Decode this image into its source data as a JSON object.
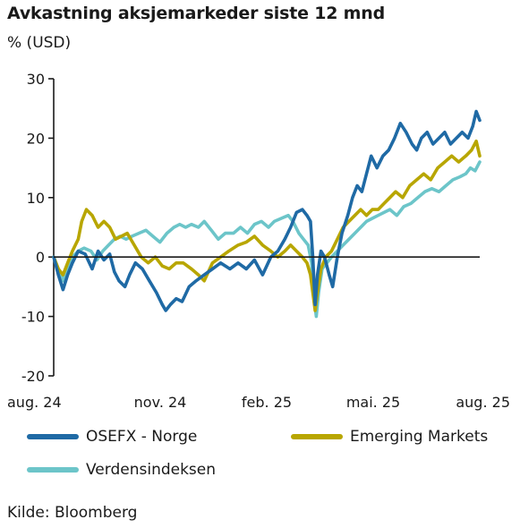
{
  "chart_data": {
    "type": "line",
    "title": "Avkastning aksjemarkeder siste 12 mnd",
    "ylabel": "% (USD)",
    "xlabel": "",
    "ylim": [
      -20,
      30
    ],
    "yticks": [
      30,
      20,
      10,
      0,
      -10,
      -20
    ],
    "xticks": [
      "aug. 24",
      "nov. 24",
      "feb. 25",
      "mai. 25",
      "aug. 25"
    ],
    "x_range": [
      "2024-08-01",
      "2025-08-01"
    ],
    "grid": false,
    "legend_position": "bottom",
    "source": "Kilde: Bloomberg",
    "series": [
      {
        "name": "OSEFX - Norge",
        "color": "#1f6aa5",
        "points": [
          [
            "2024-08-01",
            0
          ],
          [
            "2024-08-05",
            -3
          ],
          [
            "2024-08-09",
            -5.5
          ],
          [
            "2024-08-13",
            -3
          ],
          [
            "2024-08-17",
            -1
          ],
          [
            "2024-08-22",
            1
          ],
          [
            "2024-08-28",
            0.5
          ],
          [
            "2024-09-03",
            -2
          ],
          [
            "2024-09-08",
            1
          ],
          [
            "2024-09-13",
            -0.5
          ],
          [
            "2024-09-18",
            0.5
          ],
          [
            "2024-09-22",
            -2.5
          ],
          [
            "2024-09-26",
            -4
          ],
          [
            "2024-10-01",
            -5
          ],
          [
            "2024-10-05",
            -3
          ],
          [
            "2024-10-10",
            -1
          ],
          [
            "2024-10-16",
            -2
          ],
          [
            "2024-10-22",
            -4
          ],
          [
            "2024-10-28",
            -6
          ],
          [
            "2024-11-02",
            -8
          ],
          [
            "2024-11-05",
            -9
          ],
          [
            "2024-11-09",
            -8
          ],
          [
            "2024-11-14",
            -7
          ],
          [
            "2024-11-19",
            -7.5
          ],
          [
            "2024-11-25",
            -5
          ],
          [
            "2024-12-01",
            -4
          ],
          [
            "2024-12-08",
            -3
          ],
          [
            "2024-12-15",
            -2
          ],
          [
            "2024-12-22",
            -1
          ],
          [
            "2024-12-30",
            -2
          ],
          [
            "2025-01-06",
            -1
          ],
          [
            "2025-01-13",
            -2
          ],
          [
            "2025-01-20",
            -0.5
          ],
          [
            "2025-01-27",
            -3
          ],
          [
            "2025-02-03",
            0
          ],
          [
            "2025-02-09",
            1
          ],
          [
            "2025-02-15",
            3
          ],
          [
            "2025-02-20",
            5
          ],
          [
            "2025-02-25",
            7.5
          ],
          [
            "2025-03-02",
            8
          ],
          [
            "2025-03-06",
            7
          ],
          [
            "2025-03-09",
            6
          ],
          [
            "2025-03-11",
            0
          ],
          [
            "2025-03-13",
            -8
          ],
          [
            "2025-03-15",
            -3
          ],
          [
            "2025-03-18",
            1
          ],
          [
            "2025-03-21",
            0
          ],
          [
            "2025-03-25",
            -3
          ],
          [
            "2025-03-28",
            -5
          ],
          [
            "2025-04-01",
            0
          ],
          [
            "2025-04-05",
            4
          ],
          [
            "2025-04-10",
            7
          ],
          [
            "2025-04-14",
            10
          ],
          [
            "2025-04-18",
            12
          ],
          [
            "2025-04-22",
            11
          ],
          [
            "2025-04-26",
            14
          ],
          [
            "2025-04-30",
            17
          ],
          [
            "2025-05-05",
            15
          ],
          [
            "2025-05-10",
            17
          ],
          [
            "2025-05-15",
            18
          ],
          [
            "2025-05-20",
            20
          ],
          [
            "2025-05-25",
            22.5
          ],
          [
            "2025-05-30",
            21
          ],
          [
            "2025-06-04",
            19
          ],
          [
            "2025-06-08",
            18
          ],
          [
            "2025-06-12",
            20
          ],
          [
            "2025-06-17",
            21
          ],
          [
            "2025-06-22",
            19
          ],
          [
            "2025-06-27",
            20
          ],
          [
            "2025-07-02",
            21
          ],
          [
            "2025-07-07",
            19
          ],
          [
            "2025-07-12",
            20
          ],
          [
            "2025-07-17",
            21
          ],
          [
            "2025-07-22",
            20
          ],
          [
            "2025-07-26",
            22
          ],
          [
            "2025-07-29",
            24.5
          ],
          [
            "2025-08-01",
            23
          ]
        ]
      },
      {
        "name": "Emerging Markets",
        "color": "#b8a600",
        "points": [
          [
            "2024-08-01",
            0
          ],
          [
            "2024-08-05",
            -2
          ],
          [
            "2024-08-09",
            -3
          ],
          [
            "2024-08-13",
            -1
          ],
          [
            "2024-08-17",
            1
          ],
          [
            "2024-08-22",
            3
          ],
          [
            "2024-08-25",
            6
          ],
          [
            "2024-08-29",
            8
          ],
          [
            "2024-09-03",
            7
          ],
          [
            "2024-09-08",
            5
          ],
          [
            "2024-09-13",
            6
          ],
          [
            "2024-09-18",
            5
          ],
          [
            "2024-09-23",
            3
          ],
          [
            "2024-09-28",
            3.5
          ],
          [
            "2024-10-03",
            4
          ],
          [
            "2024-10-09",
            2
          ],
          [
            "2024-10-15",
            0
          ],
          [
            "2024-10-21",
            -1
          ],
          [
            "2024-10-27",
            0
          ],
          [
            "2024-11-02",
            -1.5
          ],
          [
            "2024-11-08",
            -2
          ],
          [
            "2024-11-14",
            -1
          ],
          [
            "2024-11-20",
            -1
          ],
          [
            "2024-11-27",
            -2
          ],
          [
            "2024-12-03",
            -3
          ],
          [
            "2024-12-08",
            -4
          ],
          [
            "2024-12-15",
            -1
          ],
          [
            "2024-12-22",
            0
          ],
          [
            "2024-12-29",
            1
          ],
          [
            "2025-01-06",
            2
          ],
          [
            "2025-01-13",
            2.5
          ],
          [
            "2025-01-20",
            3.5
          ],
          [
            "2025-01-27",
            2
          ],
          [
            "2025-02-03",
            1
          ],
          [
            "2025-02-09",
            0
          ],
          [
            "2025-02-15",
            1
          ],
          [
            "2025-02-20",
            2
          ],
          [
            "2025-02-25",
            1
          ],
          [
            "2025-03-02",
            0
          ],
          [
            "2025-03-06",
            -1
          ],
          [
            "2025-03-09",
            -3
          ],
          [
            "2025-03-11",
            -6
          ],
          [
            "2025-03-13",
            -9
          ],
          [
            "2025-03-15",
            -6
          ],
          [
            "2025-03-18",
            -2
          ],
          [
            "2025-03-22",
            0
          ],
          [
            "2025-03-27",
            1
          ],
          [
            "2025-04-01",
            3
          ],
          [
            "2025-04-06",
            5
          ],
          [
            "2025-04-11",
            6
          ],
          [
            "2025-04-16",
            7
          ],
          [
            "2025-04-21",
            8
          ],
          [
            "2025-04-26",
            7
          ],
          [
            "2025-05-01",
            8
          ],
          [
            "2025-05-06",
            8
          ],
          [
            "2025-05-11",
            9
          ],
          [
            "2025-05-16",
            10
          ],
          [
            "2025-05-21",
            11
          ],
          [
            "2025-05-27",
            10
          ],
          [
            "2025-06-02",
            12
          ],
          [
            "2025-06-08",
            13
          ],
          [
            "2025-06-14",
            14
          ],
          [
            "2025-06-20",
            13
          ],
          [
            "2025-06-26",
            15
          ],
          [
            "2025-07-02",
            16
          ],
          [
            "2025-07-08",
            17
          ],
          [
            "2025-07-14",
            16
          ],
          [
            "2025-07-20",
            17
          ],
          [
            "2025-07-25",
            18
          ],
          [
            "2025-07-29",
            19.5
          ],
          [
            "2025-08-01",
            17
          ]
        ]
      },
      {
        "name": "Verdensindeksen",
        "color": "#6cc5c9",
        "points": [
          [
            "2024-08-01",
            0
          ],
          [
            "2024-08-05",
            -2
          ],
          [
            "2024-08-09",
            -4
          ],
          [
            "2024-08-13",
            -2
          ],
          [
            "2024-08-17",
            0
          ],
          [
            "2024-08-22",
            1
          ],
          [
            "2024-08-27",
            1.5
          ],
          [
            "2024-09-02",
            1
          ],
          [
            "2024-09-07",
            -0.5
          ],
          [
            "2024-09-12",
            1
          ],
          [
            "2024-09-17",
            2
          ],
          [
            "2024-09-22",
            3
          ],
          [
            "2024-09-27",
            3.5
          ],
          [
            "2024-10-02",
            3
          ],
          [
            "2024-10-07",
            3.5
          ],
          [
            "2024-10-13",
            4
          ],
          [
            "2024-10-19",
            4.5
          ],
          [
            "2024-10-25",
            3.5
          ],
          [
            "2024-10-31",
            2.5
          ],
          [
            "2024-11-06",
            4
          ],
          [
            "2024-11-12",
            5
          ],
          [
            "2024-11-17",
            5.5
          ],
          [
            "2024-11-22",
            5
          ],
          [
            "2024-11-27",
            5.5
          ],
          [
            "2024-12-03",
            5
          ],
          [
            "2024-12-08",
            6
          ],
          [
            "2024-12-14",
            4.5
          ],
          [
            "2024-12-20",
            3
          ],
          [
            "2024-12-26",
            4
          ],
          [
            "2025-01-02",
            4
          ],
          [
            "2025-01-08",
            5
          ],
          [
            "2025-01-14",
            4
          ],
          [
            "2025-01-20",
            5.5
          ],
          [
            "2025-01-26",
            6
          ],
          [
            "2025-02-01",
            5
          ],
          [
            "2025-02-06",
            6
          ],
          [
            "2025-02-12",
            6.5
          ],
          [
            "2025-02-18",
            7
          ],
          [
            "2025-02-22",
            6
          ],
          [
            "2025-02-27",
            4
          ],
          [
            "2025-03-03",
            3
          ],
          [
            "2025-03-07",
            2
          ],
          [
            "2025-03-10",
            -1
          ],
          [
            "2025-03-12",
            -7
          ],
          [
            "2025-03-14",
            -10
          ],
          [
            "2025-03-16",
            -6
          ],
          [
            "2025-03-19",
            -2
          ],
          [
            "2025-03-23",
            -1
          ],
          [
            "2025-03-27",
            0
          ],
          [
            "2025-04-01",
            1
          ],
          [
            "2025-04-06",
            2
          ],
          [
            "2025-04-11",
            3
          ],
          [
            "2025-04-16",
            4
          ],
          [
            "2025-04-21",
            5
          ],
          [
            "2025-04-26",
            6
          ],
          [
            "2025-05-01",
            6.5
          ],
          [
            "2025-05-06",
            7
          ],
          [
            "2025-05-11",
            7.5
          ],
          [
            "2025-05-16",
            8
          ],
          [
            "2025-05-22",
            7
          ],
          [
            "2025-05-28",
            8.5
          ],
          [
            "2025-06-03",
            9
          ],
          [
            "2025-06-09",
            10
          ],
          [
            "2025-06-15",
            11
          ],
          [
            "2025-06-21",
            11.5
          ],
          [
            "2025-06-27",
            11
          ],
          [
            "2025-07-03",
            12
          ],
          [
            "2025-07-09",
            13
          ],
          [
            "2025-07-15",
            13.5
          ],
          [
            "2025-07-20",
            14
          ],
          [
            "2025-07-24",
            15
          ],
          [
            "2025-07-28",
            14.5
          ],
          [
            "2025-08-01",
            16
          ]
        ]
      }
    ]
  }
}
